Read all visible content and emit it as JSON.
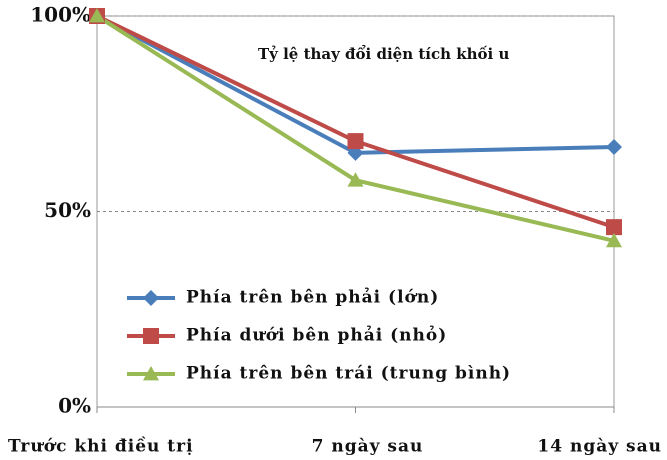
{
  "chart_data": {
    "type": "line",
    "annotation": "Tỷ lệ thay đổi diện tích khối u",
    "categories": [
      "Trước khi điều trị",
      "7 ngày sau",
      "14 ngày sau"
    ],
    "series": [
      {
        "name": "Phía trên bên phải (lớn)",
        "color": "#4a7ebb",
        "marker": "diamond",
        "values": [
          100,
          65,
          66.5
        ]
      },
      {
        "name": "Phía dưới bên phải (nhỏ)",
        "color": "#be4b48",
        "marker": "square",
        "values": [
          100,
          68,
          46
        ]
      },
      {
        "name": "Phía trên bên trái (trung bình)",
        "color": "#98b954",
        "marker": "triangle",
        "values": [
          100,
          58,
          42.5
        ]
      }
    ],
    "ylim": [
      0,
      100
    ],
    "yticks": [
      {
        "value": 0,
        "label": "0%"
      },
      {
        "value": 50,
        "label": "50%"
      },
      {
        "value": 100,
        "label": "100%"
      }
    ],
    "grid": true,
    "legend": "lower left"
  }
}
